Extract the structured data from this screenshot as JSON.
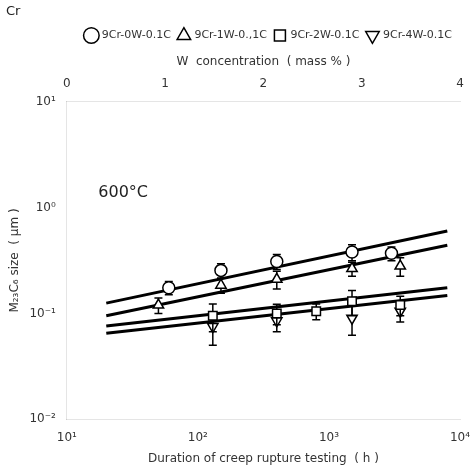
{
  "chart_data": {
    "type": "scatter",
    "log": true,
    "grid": false,
    "legend": "upper right",
    "color": "#000000",
    "xlabel": "Duration of creep rupture testing  ( h )",
    "ylabel": "M₂₃C₆ size  ( μm )",
    "annotations": [
      "600°C",
      "Cr"
    ],
    "xlim": [
      10,
      10000
    ],
    "xticks": [
      {
        "value": 10,
        "label": "10¹"
      },
      {
        "value": 100,
        "label": "10²"
      },
      {
        "value": 1000,
        "label": "10³"
      },
      {
        "value": 10000,
        "label": "10⁴"
      }
    ],
    "ylim": [
      0.01,
      10
    ],
    "yticks": [
      {
        "value": 0.01,
        "label": "10⁻²"
      },
      {
        "value": 0.1,
        "label": "10⁻¹"
      },
      {
        "value": 1,
        "label": "10⁰"
      },
      {
        "value": 10,
        "label": "10¹"
      }
    ],
    "x2label": "W  concentration  ( mass % )",
    "x2lim": [
      0,
      4
    ],
    "x2ticks": [
      0,
      1,
      2,
      3,
      4
    ],
    "series": [
      {
        "name": "9Cr-0W-0.1C",
        "marker": "circle",
        "x": [
          60,
          150,
          400,
          1500,
          3000
        ],
        "values": [
          0.175,
          0.255,
          0.31,
          0.38,
          0.37
        ],
        "yerr_lo": [
          0.025,
          0.04,
          0.05,
          0.065,
          0.055
        ],
        "yerr_hi": [
          0.025,
          0.04,
          0.05,
          0.065,
          0.055
        ],
        "trend_x": [
          20,
          8000
        ],
        "trend_values": [
          0.125,
          0.6
        ]
      },
      {
        "name": "9Cr-1W-0.,1C",
        "marker": "triangle-up",
        "x": [
          50,
          150,
          400,
          1500,
          3500
        ],
        "values": [
          0.12,
          0.185,
          0.21,
          0.265,
          0.28
        ],
        "yerr_lo": [
          0.02,
          0.03,
          0.04,
          0.04,
          0.055
        ],
        "yerr_hi": [
          0.02,
          0.03,
          0.04,
          0.04,
          0.055
        ],
        "trend_x": [
          20,
          8000
        ],
        "trend_values": [
          0.095,
          0.44
        ]
      },
      {
        "name": "9Cr-2W-0.1C",
        "marker": "square",
        "x": [
          130,
          400,
          800,
          1500,
          3500
        ],
        "values": [
          0.095,
          0.1,
          0.105,
          0.13,
          0.12
        ],
        "yerr_lo": [
          0.028,
          0.022,
          0.018,
          0.035,
          0.025
        ],
        "yerr_hi": [
          0.028,
          0.022,
          0.018,
          0.035,
          0.025
        ],
        "trend_x": [
          20,
          8000
        ],
        "trend_values": [
          0.076,
          0.175
        ]
      },
      {
        "name": "9Cr-4W-0.1C",
        "marker": "triangle-down",
        "x": [
          130,
          400,
          1500,
          3500
        ],
        "values": [
          0.075,
          0.085,
          0.09,
          0.105
        ],
        "yerr_lo": [
          0.025,
          0.018,
          0.028,
          0.022
        ],
        "yerr_hi": [
          0.025,
          0.018,
          0.028,
          0.022
        ],
        "trend_x": [
          20,
          8000
        ],
        "trend_values": [
          0.065,
          0.148
        ]
      }
    ]
  }
}
